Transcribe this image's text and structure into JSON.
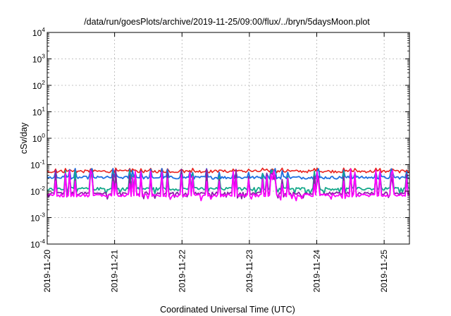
{
  "chart_data": {
    "type": "line",
    "title": "/data/run/goesPlots/archive/2019-11-25/09:00/flux/../bryn/5daysMoon.plot",
    "xlabel": "Coordinated Universal Time (UTC)",
    "ylabel": "cSv/day",
    "yscale": "log",
    "ylim_exponents": [
      -4,
      4
    ],
    "y_tick_base": "10",
    "y_tick_exponents": [
      "-4",
      "-3",
      "-2",
      "-1",
      "0",
      "1",
      "2",
      "3",
      "4"
    ],
    "x_range_days": [
      "2019-11-20",
      "2019-11-25T09:00"
    ],
    "x_tick_labels": [
      "2019-11-20",
      "2019-11-21",
      "2019-11-22",
      "2019-11-23",
      "2019-11-24",
      "2019-11-25"
    ],
    "grid": true,
    "series": [
      {
        "color": "#e8211d",
        "base": 0.055,
        "spike": 0.075
      },
      {
        "color": "#1e6fe0",
        "base": 0.032,
        "spike": 0.075
      },
      {
        "color": "#14a88a",
        "base": 0.012,
        "spike": 0.07
      },
      {
        "color": "#8b1fa8",
        "base": 0.008,
        "spike": 0.07
      },
      {
        "color": "#ff00ff",
        "base": 0.0068,
        "spike": 0.07
      }
    ]
  }
}
